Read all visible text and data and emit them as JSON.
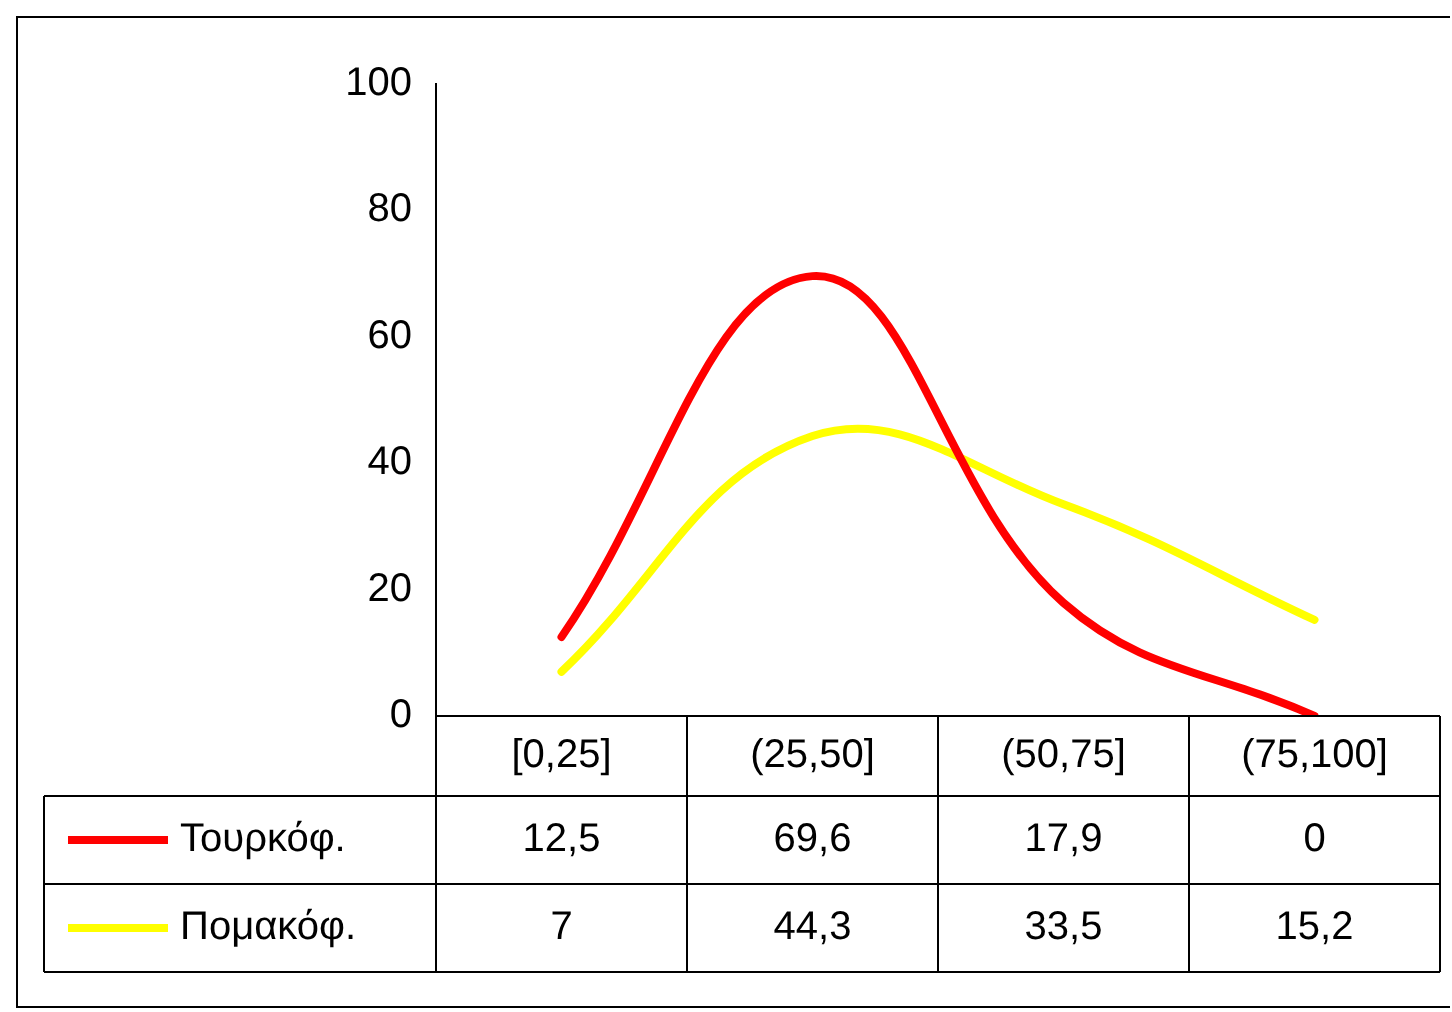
{
  "chart_data": {
    "type": "line",
    "categories": [
      "[0,25]",
      "(25,50]",
      "(50,75]",
      "(75,100]"
    ],
    "series": [
      {
        "name": "Τουρκόφ.",
        "color": "#ff0000",
        "values": [
          12.5,
          69.6,
          17.9,
          0
        ],
        "value_labels": [
          "12,5",
          "69,6",
          "17,9",
          "0"
        ]
      },
      {
        "name": "Πομακόφ.",
        "color": "#ffff00",
        "values": [
          7,
          44.3,
          33.5,
          15.2
        ],
        "value_labels": [
          "7",
          "44,3",
          "33,5",
          "15,2"
        ]
      }
    ],
    "ylim": [
      0,
      100
    ],
    "yticks": [
      0,
      20,
      40,
      60,
      80,
      100
    ],
    "legend": "bottom left",
    "marker": "none"
  }
}
